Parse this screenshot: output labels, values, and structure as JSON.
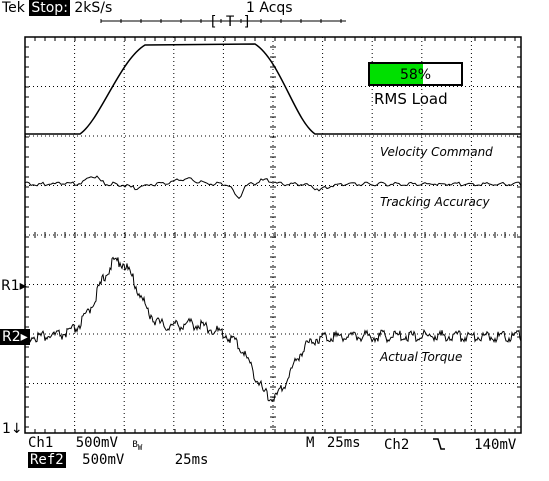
{
  "header": {
    "brand": "Tek",
    "state": "Stop:",
    "sample_rate": "2kS/s",
    "acquisitions": "1 Acqs",
    "trigger_marker": "[ T ]"
  },
  "graticule": {
    "divisions_x": 10,
    "divisions_y": 8
  },
  "overlay": {
    "rms_bar_percent_text": "58%",
    "rms_bar_fraction": 0.58,
    "rms_label": "RMS Load",
    "bar_color": "#00e000"
  },
  "trace_labels": {
    "velocity": "Velocity Command",
    "tracking": "Tracking Accuracy",
    "torque": "Actual Torque"
  },
  "markers": {
    "r1": "R1▸",
    "r2": "R2▸",
    "ch1": "1↓"
  },
  "footer": {
    "ch1_label": "Ch1",
    "ch1_scale": "500mV",
    "bw_mark": "B",
    "bw_sub": "W",
    "timebase_label": "M",
    "timebase": "25ms",
    "trigger_channel": "Ch2",
    "trigger_slope_icon": "falling-edge-icon",
    "trigger_level": "140mV",
    "ref2_label": "Ref2",
    "ref2_scale": "500mV",
    "ref2_time": "25ms"
  }
}
